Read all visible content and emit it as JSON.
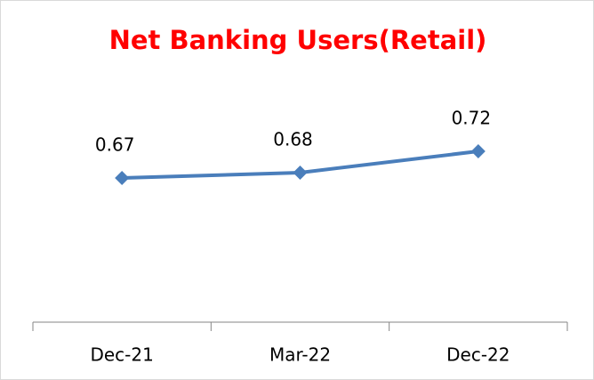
{
  "chart_data": {
    "type": "line",
    "title": "Net Banking Users(Retail)",
    "categories": [
      "Dec-21",
      "Mar-22",
      "Dec-22"
    ],
    "series": [
      {
        "name": "Net Banking Users(Retail)",
        "color": "#4a7ebb",
        "values": [
          0.67,
          0.68,
          0.72
        ]
      }
    ],
    "ylim": [
      0.4,
      0.8
    ],
    "grid": false,
    "title_color": "#ff0000"
  }
}
